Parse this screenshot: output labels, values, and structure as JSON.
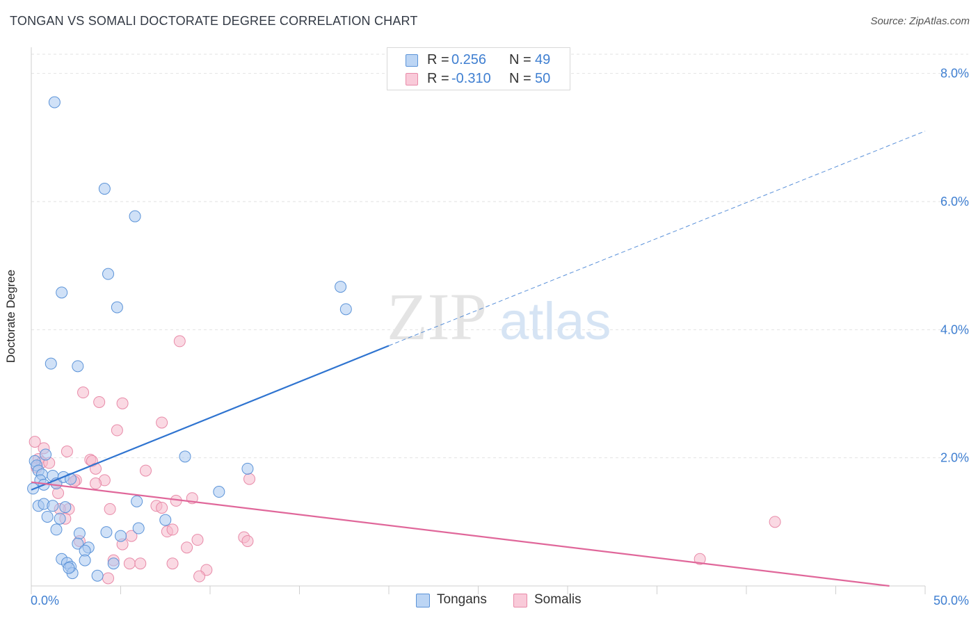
{
  "header": {
    "title": "TONGAN VS SOMALI DOCTORATE DEGREE CORRELATION CHART",
    "source": "Source: ZipAtlas.com"
  },
  "watermark": {
    "zip": "ZIP",
    "atlas": "atlas"
  },
  "colors": {
    "tongan_fill": "#a9c8f0",
    "tongan_stroke": "#5b93d8",
    "tongan_line": "#2f74d0",
    "somali_fill": "#f6b9cc",
    "somali_stroke": "#e88aa8",
    "somali_line": "#e0679a",
    "axis_label_blue": "#3f7fd1",
    "grid": "#e2e2e2"
  },
  "legend_top": {
    "rows": [
      {
        "r_label": "R =",
        "r_value": "0.256",
        "n_label": "N =",
        "n_value": "49"
      },
      {
        "r_label": "R =",
        "r_value": "-0.310",
        "n_label": "N =",
        "n_value": "50"
      }
    ]
  },
  "legend_bottom": {
    "items": [
      {
        "label": "Tongans"
      },
      {
        "label": "Somalis"
      }
    ]
  },
  "chart_data": {
    "type": "scatter",
    "title": "TONGAN VS SOMALI DOCTORATE DEGREE CORRELATION CHART",
    "xlabel": "",
    "ylabel": "Doctorate Degree",
    "xlim": [
      0,
      50
    ],
    "ylim": [
      0,
      8.3
    ],
    "x_tick_labels": {
      "0": "0.0%",
      "50": "50.0%"
    },
    "y_ticks": [
      2,
      4,
      6,
      8
    ],
    "y_tick_labels": [
      "2.0%",
      "4.0%",
      "6.0%",
      "8.0%"
    ],
    "grid": true,
    "legend_position": "top-center",
    "series": [
      {
        "name": "Tongans",
        "r": 0.256,
        "n": 49,
        "trend": {
          "x0": 0,
          "y0": 1.5,
          "x1": 20,
          "y1": 3.75,
          "dashed_to_x": 50,
          "dashed_to_y": 7.1
        },
        "points": [
          [
            1.3,
            7.55
          ],
          [
            4.1,
            6.2
          ],
          [
            5.8,
            5.77
          ],
          [
            4.3,
            4.87
          ],
          [
            1.7,
            4.58
          ],
          [
            4.8,
            4.35
          ],
          [
            17.3,
            4.67
          ],
          [
            17.6,
            4.32
          ],
          [
            1.1,
            3.47
          ],
          [
            2.6,
            3.43
          ],
          [
            8.6,
            2.02
          ],
          [
            12.1,
            1.83
          ],
          [
            10.5,
            1.47
          ],
          [
            0.2,
            1.95
          ],
          [
            0.3,
            1.88
          ],
          [
            0.4,
            1.8
          ],
          [
            0.6,
            1.74
          ],
          [
            0.8,
            2.05
          ],
          [
            1.2,
            1.72
          ],
          [
            0.5,
            1.65
          ],
          [
            0.7,
            1.58
          ],
          [
            1.4,
            1.6
          ],
          [
            1.8,
            1.7
          ],
          [
            2.2,
            1.67
          ],
          [
            0.1,
            1.52
          ],
          [
            0.4,
            1.25
          ],
          [
            0.7,
            1.28
          ],
          [
            1.2,
            1.25
          ],
          [
            1.9,
            1.23
          ],
          [
            5.9,
            1.32
          ],
          [
            0.9,
            1.08
          ],
          [
            1.6,
            1.05
          ],
          [
            7.5,
            1.03
          ],
          [
            1.4,
            0.88
          ],
          [
            2.7,
            0.82
          ],
          [
            6.0,
            0.9
          ],
          [
            4.2,
            0.84
          ],
          [
            5.0,
            0.78
          ],
          [
            2.6,
            0.66
          ],
          [
            3.2,
            0.6
          ],
          [
            3.0,
            0.55
          ],
          [
            1.7,
            0.42
          ],
          [
            2.0,
            0.36
          ],
          [
            2.2,
            0.3
          ],
          [
            3.0,
            0.4
          ],
          [
            2.3,
            0.2
          ],
          [
            3.7,
            0.16
          ],
          [
            4.6,
            0.35
          ],
          [
            2.1,
            0.28
          ]
        ]
      },
      {
        "name": "Somalis",
        "r": -0.31,
        "n": 50,
        "trend": {
          "x0": 0,
          "y0": 1.62,
          "x1": 48,
          "y1": 0.0
        },
        "points": [
          [
            0.2,
            2.25
          ],
          [
            0.7,
            2.15
          ],
          [
            2.0,
            2.1
          ],
          [
            8.3,
            3.82
          ],
          [
            2.9,
            3.02
          ],
          [
            3.8,
            2.87
          ],
          [
            5.1,
            2.85
          ],
          [
            7.3,
            2.55
          ],
          [
            4.8,
            2.43
          ],
          [
            3.3,
            1.97
          ],
          [
            3.4,
            1.95
          ],
          [
            0.4,
            1.98
          ],
          [
            0.6,
            1.93
          ],
          [
            1.0,
            1.92
          ],
          [
            0.3,
            1.85
          ],
          [
            3.6,
            1.83
          ],
          [
            6.4,
            1.8
          ],
          [
            12.2,
            1.67
          ],
          [
            4.1,
            1.65
          ],
          [
            2.5,
            1.65
          ],
          [
            2.4,
            1.63
          ],
          [
            1.4,
            1.6
          ],
          [
            3.6,
            1.6
          ],
          [
            1.5,
            1.45
          ],
          [
            9.0,
            1.37
          ],
          [
            8.1,
            1.33
          ],
          [
            4.4,
            1.2
          ],
          [
            7.0,
            1.25
          ],
          [
            7.3,
            1.22
          ],
          [
            2.1,
            1.2
          ],
          [
            1.6,
            1.2
          ],
          [
            1.9,
            1.05
          ],
          [
            7.6,
            0.85
          ],
          [
            7.9,
            0.88
          ],
          [
            8.7,
            0.6
          ],
          [
            9.3,
            0.72
          ],
          [
            11.9,
            0.76
          ],
          [
            12.1,
            0.7
          ],
          [
            5.6,
            0.78
          ],
          [
            2.7,
            0.7
          ],
          [
            5.1,
            0.65
          ],
          [
            4.6,
            0.4
          ],
          [
            5.5,
            0.35
          ],
          [
            6.1,
            0.35
          ],
          [
            7.9,
            0.35
          ],
          [
            9.8,
            0.25
          ],
          [
            9.4,
            0.15
          ],
          [
            4.3,
            0.12
          ],
          [
            37.4,
            0.42
          ],
          [
            41.6,
            1.0
          ]
        ]
      }
    ]
  }
}
